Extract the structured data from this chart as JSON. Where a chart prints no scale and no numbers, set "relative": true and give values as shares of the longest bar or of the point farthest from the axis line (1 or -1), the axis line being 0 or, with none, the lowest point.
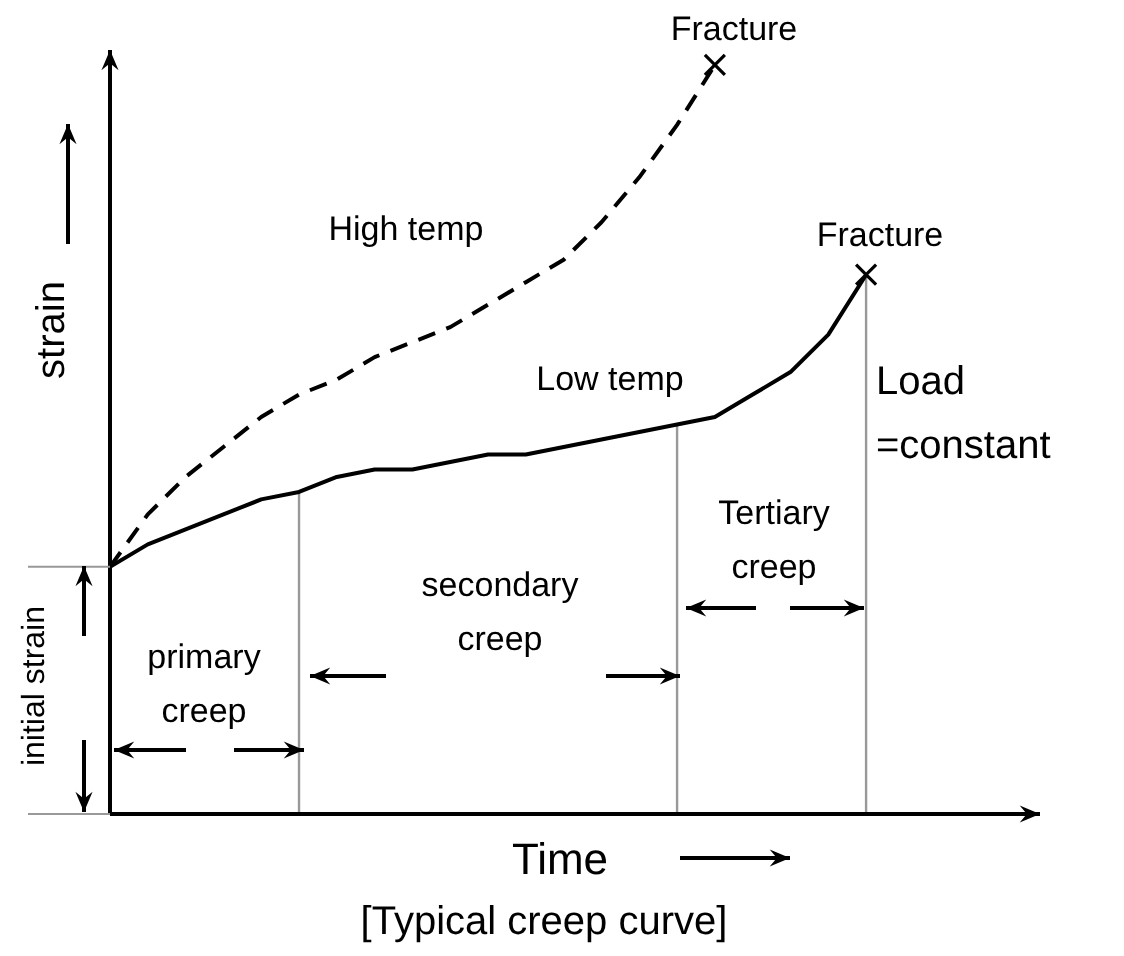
{
  "chart_data": {
    "type": "line",
    "relative": true,
    "xlabel": "Time",
    "ylabel": "strain",
    "categories": [
      null,
      null,
      null,
      null,
      null,
      null,
      null,
      null,
      null,
      null,
      null,
      null,
      null,
      null,
      null,
      null,
      null,
      null,
      null,
      null,
      null,
      null,
      null,
      null,
      null
    ],
    "series": [
      {
        "name": "High temp",
        "color": "#000000",
        "line_style": "dashed",
        "marker": "none",
        "values": [
          0.33,
          0.4,
          0.45,
          0.49,
          0.53,
          0.56,
          0.58,
          0.61,
          0.63,
          0.65,
          0.68,
          0.71,
          0.74,
          0.79,
          0.85,
          0.92,
          1.0,
          null,
          null,
          null,
          null,
          null,
          null,
          null,
          null
        ]
      },
      {
        "name": "Low temp",
        "color": "#000000",
        "line_style": "solid",
        "marker": "none",
        "values": [
          0.33,
          0.36,
          0.38,
          0.4,
          0.42,
          0.43,
          0.45,
          0.46,
          0.46,
          0.47,
          0.48,
          0.48,
          0.49,
          0.5,
          0.51,
          0.52,
          0.53,
          0.56,
          0.59,
          0.64,
          0.72,
          null,
          null,
          null,
          null
        ]
      }
    ],
    "annotations": [
      "Fracture",
      "Fracture",
      "Load =constant",
      "initial strain",
      "primary creep",
      "secondary creep",
      "Tertiary creep",
      "[Typical creep curve]"
    ]
  }
}
